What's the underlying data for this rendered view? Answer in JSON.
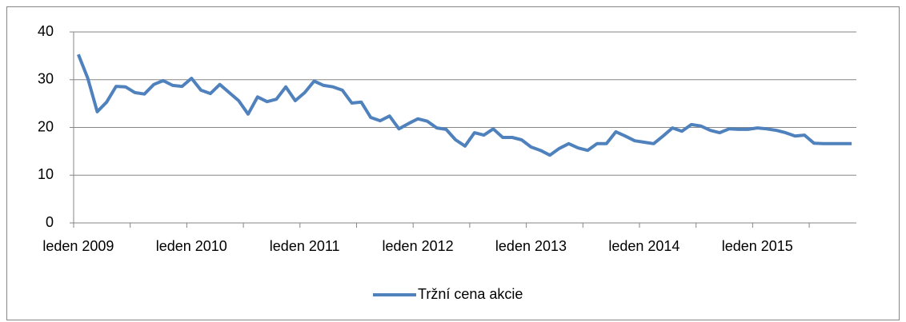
{
  "chart_data": {
    "type": "line",
    "categories": [
      "leden 2009",
      null,
      null,
      null,
      null,
      null,
      null,
      null,
      null,
      null,
      null,
      null,
      "leden 2010",
      null,
      null,
      null,
      null,
      null,
      null,
      null,
      null,
      null,
      null,
      null,
      "leden 2011",
      null,
      null,
      null,
      null,
      null,
      null,
      null,
      null,
      null,
      null,
      null,
      "leden 2012",
      null,
      null,
      null,
      null,
      null,
      null,
      null,
      null,
      null,
      null,
      null,
      "leden 2013",
      null,
      null,
      null,
      null,
      null,
      null,
      null,
      null,
      null,
      null,
      null,
      "leden 2014",
      null,
      null,
      null,
      null,
      null,
      null,
      null,
      null,
      null,
      null,
      null,
      "leden 2015",
      null,
      null,
      null,
      null,
      null,
      null,
      null,
      null,
      null,
      null
    ],
    "series": [
      {
        "name": "Tržní cena akcie",
        "color": "#4f81bd",
        "values": [
          35.3,
          30.3,
          23.3,
          25.3,
          28.6,
          28.5,
          27.3,
          27,
          29,
          29.8,
          28.8,
          28.6,
          30.3,
          27.8,
          27.1,
          29,
          27.3,
          25.6,
          22.8,
          26.4,
          25.4,
          25.9,
          28.5,
          25.6,
          27.3,
          29.7,
          28.8,
          28.5,
          27.8,
          25.1,
          25.3,
          22.1,
          21.4,
          22.4,
          19.7,
          20.8,
          21.8,
          21.3,
          19.9,
          19.6,
          17.4,
          16.1,
          18.9,
          18.4,
          19.7,
          17.9,
          17.9,
          17.4,
          15.9,
          15.2,
          14.2,
          15.6,
          16.6,
          15.7,
          15.2,
          16.6,
          16.6,
          19.1,
          18.2,
          17.2,
          16.9,
          16.6,
          18.2,
          19.9,
          19.2,
          20.6,
          20.3,
          19.4,
          18.9,
          19.7,
          19.6,
          19.6,
          19.9,
          19.7,
          19.4,
          18.9,
          18.2,
          18.4,
          16.7,
          16.6,
          16.6,
          16.6,
          16.6
        ]
      }
    ],
    "ylim": [
      0,
      40
    ],
    "yticks": [
      0,
      10,
      20,
      30,
      40
    ],
    "grid": true,
    "legend": "bottom"
  }
}
